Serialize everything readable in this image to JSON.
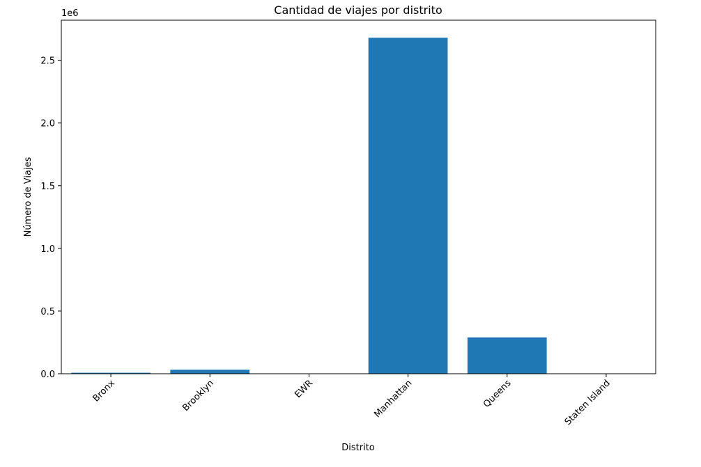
{
  "chart_data": {
    "type": "bar",
    "title": "Cantidad de viajes por distrito",
    "xlabel": "Distrito",
    "ylabel": "Número de Viajes",
    "y_offset_label": "1e6",
    "categories": [
      "Bronx",
      "Brooklyn",
      "EWR",
      "Manhattan",
      "Queens",
      "Staten Island"
    ],
    "values": [
      8000,
      32000,
      500,
      2680000,
      290000,
      1000
    ],
    "ylim": [
      0,
      2820000
    ],
    "yticks": [
      0,
      500000,
      1000000,
      1500000,
      2000000,
      2500000
    ],
    "ytick_labels": [
      "0.0",
      "0.5",
      "1.0",
      "1.5",
      "2.0",
      "2.5"
    ],
    "bar_color": "#1f77b4",
    "grid": false,
    "legend": "none"
  }
}
